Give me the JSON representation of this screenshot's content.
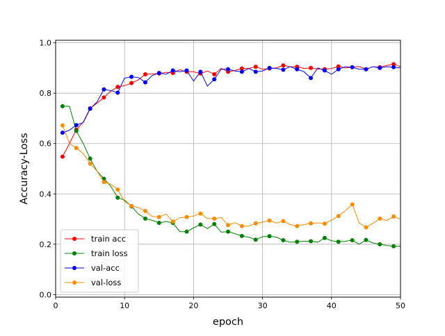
{
  "chart_data": {
    "type": "line",
    "title": "",
    "xlabel": "epoch",
    "ylabel": "Accuracy-Loss",
    "xlim": [
      0,
      50
    ],
    "ylim": [
      0,
      1.0
    ],
    "xticks": [
      "0",
      "10",
      "20",
      "30",
      "40",
      "50"
    ],
    "yticks": [
      "0.0",
      "0.2",
      "0.4",
      "0.6",
      "0.8",
      "1.0"
    ],
    "grid": true,
    "legend": "lower-left",
    "x": [
      1,
      2,
      3,
      4,
      5,
      6,
      7,
      8,
      9,
      10,
      11,
      12,
      13,
      14,
      15,
      16,
      17,
      18,
      19,
      20,
      21,
      22,
      23,
      24,
      25,
      26,
      27,
      28,
      29,
      30,
      31,
      32,
      33,
      34,
      35,
      36,
      37,
      38,
      39,
      40,
      41,
      42,
      43,
      44,
      45,
      46,
      47,
      48,
      49,
      50
    ],
    "series": [
      {
        "name": "train acc",
        "color": "#ff0000",
        "values": [
          0.548,
          0.6,
          0.655,
          0.685,
          0.74,
          0.76,
          0.783,
          0.808,
          0.825,
          0.83,
          0.84,
          0.853,
          0.875,
          0.876,
          0.878,
          0.883,
          0.88,
          0.893,
          0.885,
          0.885,
          0.878,
          0.888,
          0.875,
          0.898,
          0.885,
          0.89,
          0.898,
          0.898,
          0.905,
          0.895,
          0.898,
          0.9,
          0.91,
          0.905,
          0.905,
          0.898,
          0.9,
          0.896,
          0.895,
          0.898,
          0.906,
          0.9,
          0.903,
          0.906,
          0.895,
          0.905,
          0.903,
          0.91,
          0.915,
          0.905
        ]
      },
      {
        "name": "train loss",
        "color": "#008000",
        "values": [
          0.748,
          0.748,
          0.65,
          0.6,
          0.54,
          0.49,
          0.46,
          0.43,
          0.385,
          0.375,
          0.35,
          0.32,
          0.302,
          0.295,
          0.285,
          0.29,
          0.285,
          0.25,
          0.25,
          0.265,
          0.278,
          0.262,
          0.28,
          0.248,
          0.25,
          0.242,
          0.233,
          0.228,
          0.218,
          0.23,
          0.232,
          0.228,
          0.216,
          0.208,
          0.21,
          0.212,
          0.212,
          0.208,
          0.225,
          0.214,
          0.21,
          0.212,
          0.216,
          0.2,
          0.217,
          0.205,
          0.2,
          0.195,
          0.192,
          0.192
        ]
      },
      {
        "name": "val-acc",
        "color": "#0000ff",
        "values": [
          0.643,
          0.653,
          0.673,
          0.683,
          0.738,
          0.765,
          0.815,
          0.81,
          0.802,
          0.86,
          0.865,
          0.862,
          0.843,
          0.87,
          0.88,
          0.875,
          0.89,
          0.885,
          0.89,
          0.848,
          0.885,
          0.828,
          0.855,
          0.895,
          0.895,
          0.888,
          0.885,
          0.898,
          0.885,
          0.888,
          0.9,
          0.898,
          0.893,
          0.905,
          0.895,
          0.885,
          0.86,
          0.9,
          0.89,
          0.875,
          0.895,
          0.905,
          0.903,
          0.895,
          0.895,
          0.905,
          0.9,
          0.905,
          0.903,
          0.9
        ]
      },
      {
        "name": "val-loss",
        "color": "#ff8c00",
        "values": [
          0.672,
          0.6,
          0.582,
          0.56,
          0.52,
          0.49,
          0.447,
          0.438,
          0.417,
          0.37,
          0.352,
          0.345,
          0.332,
          0.31,
          0.308,
          0.32,
          0.29,
          0.305,
          0.308,
          0.312,
          0.322,
          0.302,
          0.302,
          0.306,
          0.276,
          0.286,
          0.272,
          0.272,
          0.283,
          0.288,
          0.294,
          0.284,
          0.292,
          0.278,
          0.272,
          0.278,
          0.283,
          0.285,
          0.282,
          0.296,
          0.312,
          0.333,
          0.358,
          0.285,
          0.267,
          0.283,
          0.302,
          0.294,
          0.31,
          0.3
        ]
      }
    ]
  }
}
